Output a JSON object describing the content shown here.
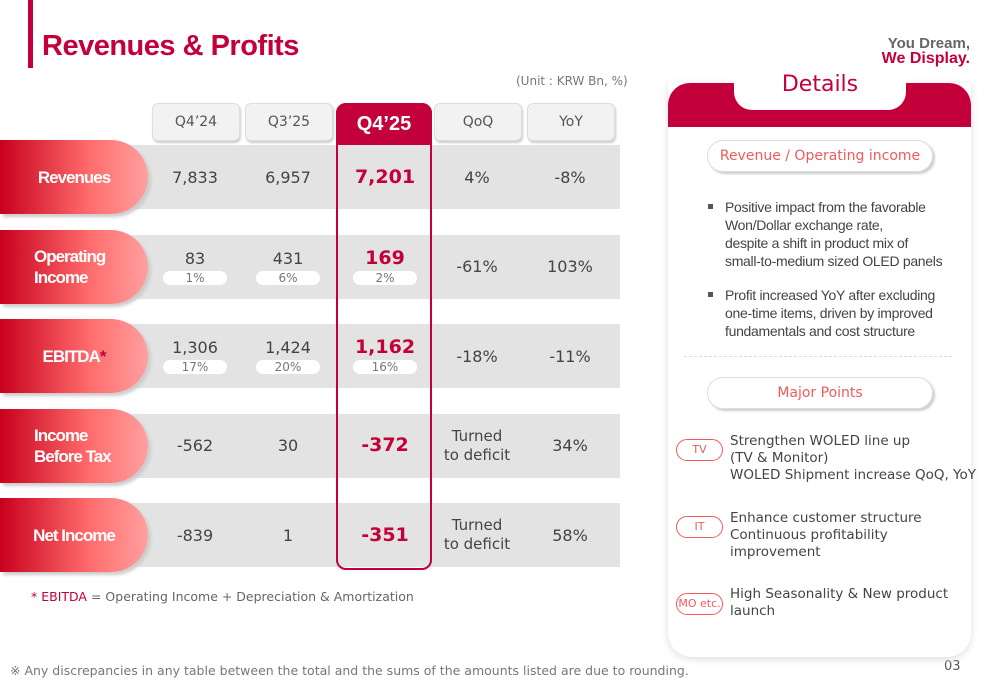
{
  "title": "Revenues & Profits",
  "logo": {
    "line1": "You Dream,",
    "line2": "We Display."
  },
  "unit": "(Unit : KRW Bn, %)",
  "columns": [
    "Q4’24",
    "Q3’25",
    "Q4’25",
    "QoQ",
    "YoY"
  ],
  "highlight_column": 2,
  "rows": [
    {
      "label": "Revenues",
      "values": [
        "7,833",
        "6,957",
        "7,201",
        "4%",
        "-8%"
      ],
      "margins": []
    },
    {
      "label": "Operating Income",
      "values": [
        "83",
        "431",
        "169",
        "-61%",
        "103%"
      ],
      "margins": [
        "1%",
        "6%",
        "2%"
      ]
    },
    {
      "label": "EBITDA",
      "star": "*",
      "values": [
        "1,306",
        "1,424",
        "1,162",
        "-18%",
        "-11%"
      ],
      "margins": [
        "17%",
        "20%",
        "16%"
      ]
    },
    {
      "label": "Income Before Tax",
      "values": [
        "-562",
        "30",
        "-372",
        "Turned to deficit",
        "34%"
      ],
      "margins": []
    },
    {
      "label": "Net Income",
      "values": [
        "-839",
        "1",
        "-351",
        "Turned to deficit",
        "58%"
      ],
      "margins": []
    }
  ],
  "note": {
    "star": "* EBITDA",
    "text": "=  Operating Income + Depreciation & Amortization"
  },
  "footnote": "※ Any discrepancies in any table between the total and the sums of the amounts listed are due to rounding.",
  "page_number": "03",
  "details": {
    "title": "Details",
    "section1": "Revenue / Operating income",
    "bullets": [
      "Positive impact from the favorable\nWon/Dollar exchange rate,\ndespite a shift in product mix of\nsmall-to-medium sized OLED panels",
      "Profit increased YoY after excluding\none-time items, driven by improved\nfundamentals and cost structure"
    ],
    "section2": "Major Points",
    "points": [
      {
        "tag": "TV",
        "text": "Strengthen WOLED line up\n  (TV & Monitor)\nWOLED Shipment increase QoQ, YoY"
      },
      {
        "tag": "IT",
        "text": "Enhance customer structure\nContinuous profitability\nimprovement"
      },
      {
        "tag": "MO etc.",
        "text": "High Seasonality & New product\nlaunch"
      }
    ]
  },
  "colors": {
    "brand": "#c4003a",
    "accent": "#f25a5a"
  }
}
